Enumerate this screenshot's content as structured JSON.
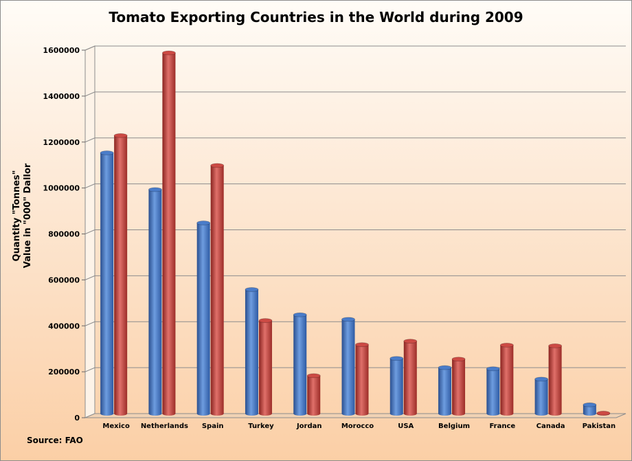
{
  "chart_data": {
    "type": "bar",
    "title": "Tomato Exporting Countries in the World during 2009",
    "ylabel_line1": "Quantity \"Tonnes\"",
    "ylabel_line2": "Value in \"000\" Dallor",
    "source": "Source: FAO",
    "ylim": [
      0,
      1600000
    ],
    "yticks": [
      0,
      200000,
      400000,
      600000,
      800000,
      1000000,
      1200000,
      1400000,
      1600000
    ],
    "grid": true,
    "categories": [
      "Mexico",
      "Netherlands",
      "Spain",
      "Turkey",
      "Jordan",
      "Morocco",
      "USA",
      "Belgium",
      "France",
      "Canada",
      "Pakistan"
    ],
    "series": [
      {
        "values": [
          1135000,
          975000,
          830000,
          540000,
          430000,
          410000,
          240000,
          200000,
          195000,
          150000,
          38000
        ]
      },
      {
        "values": [
          1210000,
          1570000,
          1080000,
          405000,
          165000,
          300000,
          315000,
          237000,
          298000,
          295000,
          2000
        ]
      }
    ],
    "colors": [
      "#4a7cc9",
      "#cc4a44"
    ]
  }
}
